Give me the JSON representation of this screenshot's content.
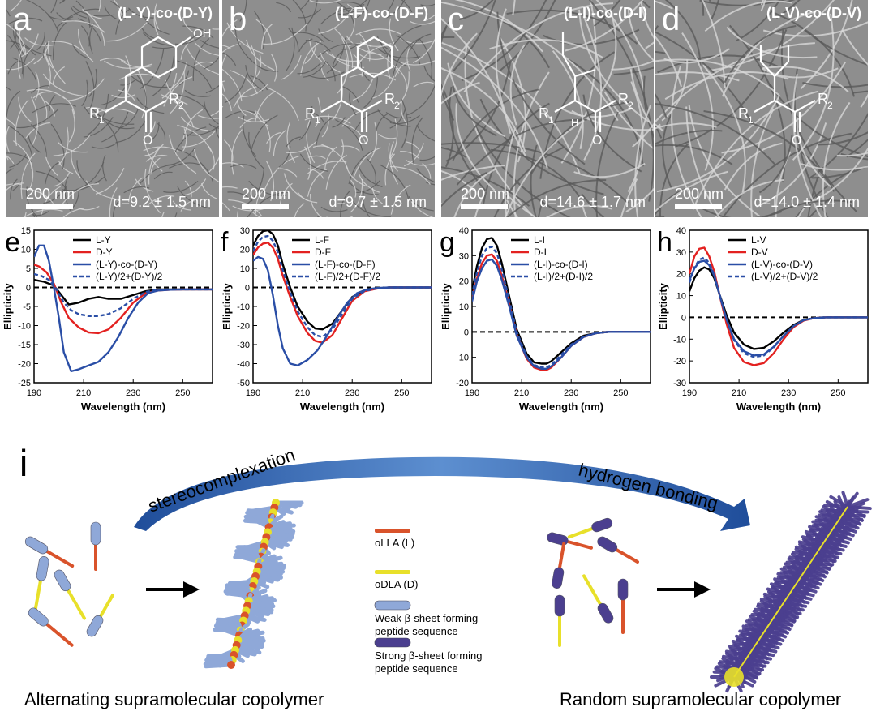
{
  "tem_panels": [
    {
      "letter": "a",
      "title": "(L-Y)-co-(D-Y)",
      "scale": "200 nm",
      "diameter": "d=9.2 ± 1.5 nm",
      "substituent": "OH"
    },
    {
      "letter": "b",
      "title": "(L-F)-co-(D-F)",
      "scale": "200 nm",
      "diameter": "d=9.7 ± 1.5 nm"
    },
    {
      "letter": "c",
      "title": "(L-I)-co-(D-I)",
      "scale": "200 nm",
      "diameter": "d=14.6 ± 1.7 nm"
    },
    {
      "letter": "d",
      "title": "(L-V)-co-(D-V)",
      "scale": "200 nm",
      "diameter": "d=14.0 ± 1.4 nm"
    }
  ],
  "mol_labels": {
    "r1": "R",
    "r2": "R",
    "sub1": "1",
    "sub2": "2",
    "o": "O",
    "h": "H"
  },
  "cd_colors": {
    "l": "#000000",
    "d": "#e32120",
    "co": "#2a4ea6",
    "avg": "#2a4ea6"
  },
  "chart_data": [
    {
      "letter": "e",
      "type": "line",
      "xlabel": "Wavelength (nm)",
      "ylabel": "Ellipticity",
      "xlim": [
        190,
        262
      ],
      "ylim": [
        -25,
        15
      ],
      "xticks": [
        190,
        210,
        230,
        250
      ],
      "yticks": [
        -25,
        -20,
        -15,
        -10,
        -5,
        0,
        5,
        10,
        15
      ],
      "legend": [
        "L-Y",
        "D-Y",
        "(L-Y)-co-(D-Y)",
        "(L-Y)/2+(D-Y)/2"
      ],
      "series": [
        {
          "name": "L-Y",
          "x": [
            190,
            194,
            198,
            201,
            204,
            208,
            212,
            216,
            220,
            225,
            230,
            235,
            240,
            245,
            250,
            262
          ],
          "y": [
            2,
            1.5,
            0.5,
            -2,
            -4.5,
            -4,
            -3,
            -2.5,
            -3,
            -3,
            -2,
            -1,
            -0.5,
            -0.5,
            -0.5,
            -0.5
          ]
        },
        {
          "name": "D-Y",
          "x": [
            190,
            192,
            195,
            198,
            201,
            204,
            208,
            212,
            216,
            220,
            225,
            230,
            235,
            240,
            245,
            250,
            262
          ],
          "y": [
            6,
            5.5,
            4,
            1,
            -4,
            -8,
            -10.5,
            -11.8,
            -12,
            -11,
            -8,
            -4,
            -1.5,
            -0.8,
            -0.6,
            -0.5,
            -0.5
          ]
        },
        {
          "name": "(L-Y)-co-(D-Y)",
          "x": [
            190,
            192,
            194,
            196,
            198,
            200,
            202,
            205,
            208,
            212,
            216,
            220,
            224,
            228,
            232,
            236,
            240,
            245,
            250,
            262
          ],
          "y": [
            8,
            11,
            11,
            7,
            0,
            -8,
            -17,
            -22,
            -21.5,
            -20.5,
            -19.5,
            -17,
            -13,
            -8,
            -4,
            -1.5,
            -0.8,
            -0.6,
            -0.5,
            -0.5
          ]
        },
        {
          "name": "(L-Y)/2+(D-Y)/2",
          "x": [
            190,
            193,
            196,
            199,
            202,
            205,
            208,
            212,
            216,
            220,
            225,
            230,
            235,
            240,
            245,
            250,
            262
          ],
          "y": [
            3.5,
            3,
            2,
            -0.5,
            -4,
            -6,
            -7,
            -7.5,
            -7.5,
            -7,
            -5.5,
            -3,
            -1.2,
            -0.6,
            -0.5,
            -0.5,
            -0.5
          ]
        }
      ]
    },
    {
      "letter": "f",
      "type": "line",
      "xlabel": "Wavelength (nm)",
      "ylabel": "Ellipticity",
      "xlim": [
        190,
        262
      ],
      "ylim": [
        -50,
        30
      ],
      "xticks": [
        190,
        210,
        230,
        250
      ],
      "yticks": [
        -50,
        -40,
        -30,
        -20,
        -10,
        0,
        10,
        20,
        30
      ],
      "legend": [
        "L-F",
        "D-F",
        "(L-F)-co-(D-F)",
        "(L-F)/2+(D-F)/2"
      ],
      "series": [
        {
          "name": "L-F",
          "x": [
            190,
            192,
            194,
            196,
            198,
            200,
            202,
            205,
            208,
            212,
            215,
            218,
            222,
            226,
            230,
            235,
            240,
            245,
            250,
            262
          ],
          "y": [
            22,
            27,
            29.5,
            30,
            28,
            22,
            12,
            0,
            -10,
            -18,
            -21.5,
            -22,
            -19,
            -12,
            -5,
            -1.5,
            -0.5,
            0,
            0,
            0
          ]
        },
        {
          "name": "D-F",
          "x": [
            190,
            192,
            194,
            196,
            198,
            200,
            202,
            205,
            208,
            212,
            215,
            218,
            222,
            226,
            230,
            235,
            240,
            245,
            250,
            262
          ],
          "y": [
            17,
            21,
            23,
            23.5,
            21,
            15,
            6,
            -5,
            -15,
            -24,
            -28,
            -29,
            -25,
            -16,
            -7,
            -2,
            -0.6,
            0,
            0,
            0
          ]
        },
        {
          "name": "(L-F)-co-(D-F)",
          "x": [
            190,
            192,
            194,
            196,
            198,
            200,
            202,
            205,
            208,
            212,
            216,
            220,
            224,
            228,
            232,
            236,
            240,
            245,
            250,
            262
          ],
          "y": [
            14,
            16,
            15,
            9,
            -4,
            -20,
            -32,
            -40,
            -41,
            -38,
            -33,
            -25,
            -16,
            -8,
            -3,
            -1,
            -0.3,
            0,
            0,
            0
          ]
        },
        {
          "name": "(L-F)/2+(D-F)/2",
          "x": [
            190,
            192,
            194,
            196,
            198,
            200,
            202,
            205,
            208,
            212,
            215,
            218,
            222,
            226,
            230,
            235,
            240,
            245,
            250,
            262
          ],
          "y": [
            19,
            24,
            26.5,
            27,
            24.5,
            18.5,
            9,
            -2.5,
            -12.5,
            -21,
            -25,
            -26,
            -22,
            -14,
            -6,
            -1.8,
            -0.5,
            0,
            0,
            0
          ]
        }
      ]
    },
    {
      "letter": "g",
      "type": "line",
      "xlabel": "Wavelength (nm)",
      "ylabel": "Ellipticity",
      "xlim": [
        190,
        262
      ],
      "ylim": [
        -20,
        40
      ],
      "xticks": [
        190,
        210,
        230,
        250
      ],
      "yticks": [
        -20,
        -10,
        0,
        10,
        20,
        30,
        40
      ],
      "legend": [
        "L-I",
        "D-I",
        "(L-I)-co-(D-I)",
        "(L-I)/2+(D-I)/2"
      ],
      "series": [
        {
          "name": "L-I",
          "x": [
            190,
            192,
            194,
            196,
            198,
            200,
            202,
            205,
            208,
            212,
            215,
            218,
            220,
            222,
            226,
            230,
            235,
            240,
            245,
            250,
            262
          ],
          "y": [
            16,
            26,
            33,
            36.5,
            37,
            34,
            27,
            14,
            1,
            -8.5,
            -12,
            -12.5,
            -12.5,
            -11.5,
            -8,
            -4.5,
            -1.5,
            -0.5,
            0,
            0,
            0
          ]
        },
        {
          "name": "D-I",
          "x": [
            190,
            192,
            194,
            196,
            198,
            200,
            202,
            205,
            208,
            212,
            215,
            218,
            220,
            222,
            226,
            230,
            235,
            240,
            245,
            250,
            262
          ],
          "y": [
            13,
            21,
            27,
            30,
            30.5,
            28,
            22,
            11,
            -1,
            -10.5,
            -14,
            -15,
            -15,
            -14,
            -10,
            -5.5,
            -2,
            -0.5,
            0,
            0,
            0
          ]
        },
        {
          "name": "(L-I)-co-(D-I)",
          "x": [
            190,
            192,
            194,
            196,
            198,
            200,
            202,
            205,
            208,
            212,
            215,
            218,
            220,
            222,
            226,
            230,
            235,
            240,
            245,
            250,
            262
          ],
          "y": [
            12,
            20,
            25,
            28,
            28.5,
            26,
            20.5,
            10,
            -1.5,
            -10,
            -13.5,
            -14.5,
            -14.5,
            -13.5,
            -10,
            -5.5,
            -2,
            -0.5,
            0,
            0,
            0
          ]
        },
        {
          "name": "(L-I)/2+(D-I)/2",
          "x": [
            190,
            192,
            194,
            196,
            198,
            200,
            202,
            205,
            208,
            212,
            215,
            218,
            220,
            222,
            226,
            230,
            235,
            240,
            245,
            250,
            262
          ],
          "y": [
            14.5,
            23.5,
            30,
            33,
            33.5,
            31,
            24.5,
            12.5,
            0,
            -9.5,
            -13,
            -14,
            -14,
            -13,
            -9,
            -5,
            -1.8,
            -0.5,
            0,
            0,
            0
          ]
        }
      ]
    },
    {
      "letter": "h",
      "type": "line",
      "xlabel": "Wavelength (nm)",
      "ylabel": "Ellipticity",
      "xlim": [
        190,
        262
      ],
      "ylim": [
        -30,
        40
      ],
      "xticks": [
        190,
        210,
        230,
        250
      ],
      "yticks": [
        -30,
        -20,
        -10,
        0,
        10,
        20,
        30,
        40
      ],
      "legend": [
        "L-V",
        "D-V",
        "(L-V)-co-(D-V)",
        "(L-V)/2+(D-V)/2"
      ],
      "series": [
        {
          "name": "L-V",
          "x": [
            190,
            192,
            194,
            196,
            198,
            200,
            202,
            205,
            208,
            212,
            216,
            220,
            224,
            228,
            232,
            236,
            240,
            245,
            250,
            262
          ],
          "y": [
            12,
            18,
            21.5,
            23,
            22,
            18,
            11,
            1,
            -7,
            -12.5,
            -14.5,
            -14,
            -11,
            -7,
            -3.5,
            -1.2,
            -0.4,
            0,
            0,
            0
          ]
        },
        {
          "name": "D-V",
          "x": [
            190,
            192,
            194,
            196,
            198,
            200,
            202,
            205,
            208,
            212,
            216,
            220,
            224,
            228,
            232,
            236,
            240,
            245,
            250,
            262
          ],
          "y": [
            20,
            28,
            31.5,
            32,
            28,
            21,
            11,
            -3,
            -14,
            -20.5,
            -22,
            -21,
            -16.5,
            -10,
            -4.5,
            -1.5,
            -0.4,
            0,
            0,
            0
          ]
        },
        {
          "name": "(L-V)-co-(D-V)",
          "x": [
            190,
            192,
            194,
            196,
            198,
            200,
            202,
            205,
            208,
            212,
            216,
            220,
            224,
            228,
            232,
            236,
            240,
            245,
            250,
            262
          ],
          "y": [
            17,
            22.5,
            25.5,
            26,
            24,
            19,
            11,
            -1,
            -10,
            -15.5,
            -17.5,
            -17,
            -13.5,
            -8.5,
            -4,
            -1.3,
            -0.4,
            0,
            0,
            0
          ]
        },
        {
          "name": "(L-V)/2+(D-V)/2",
          "x": [
            190,
            192,
            194,
            196,
            198,
            200,
            202,
            205,
            208,
            212,
            216,
            220,
            224,
            228,
            232,
            236,
            240,
            245,
            250,
            262
          ],
          "y": [
            16,
            23,
            26.5,
            27.5,
            25,
            19.5,
            11,
            -1,
            -10.5,
            -16.5,
            -18.2,
            -17.5,
            -13.8,
            -8.5,
            -4,
            -1.3,
            -0.4,
            0,
            0,
            0
          ]
        }
      ]
    }
  ],
  "schematic": {
    "letter": "i",
    "arc_left": "stereocomplexation",
    "arc_right": "hydrogen bonding",
    "legend": [
      {
        "line1": "oLLA (L)",
        "line2": "",
        "color": "#d9532b"
      },
      {
        "line1": "oDLA (D)",
        "line2": "",
        "color": "#e8e02a"
      },
      {
        "line1": "Weak β-sheet forming",
        "line2": "peptide sequence",
        "color": "#8fa8d8"
      },
      {
        "line1": "Strong β-sheet forming",
        "line2": "peptide sequence",
        "color": "#4b3f8f"
      }
    ],
    "caption_left": "Alternating supramolecular copolymer",
    "caption_right": "Random supramolecular copolymer",
    "colors": {
      "arrow": "#2f5fa8",
      "weak": "#8fa8d8",
      "strong": "#4b3f8f",
      "l": "#d9532b",
      "d": "#e8e02a"
    }
  }
}
